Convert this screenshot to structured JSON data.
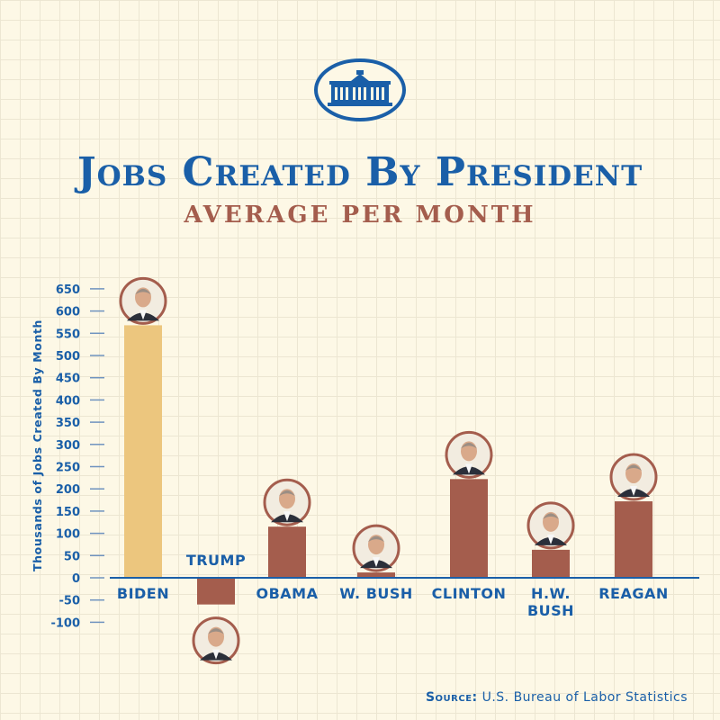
{
  "header": {
    "title": "Jobs Created By President",
    "subtitle": "AVERAGE PER MONTH",
    "logo_icon": "white-house-icon"
  },
  "source": {
    "label": "Source:",
    "text": "U.S. Bureau of Labor Statistics"
  },
  "colors": {
    "accent": "#1a5fa8",
    "bar": "#a45d4d",
    "highlight_bar": "#ecc67e",
    "background": "#fdf8e6"
  },
  "chart_data": {
    "type": "bar",
    "title": "Jobs Created By President",
    "subtitle": "AVERAGE PER MONTH",
    "ylabel": "Thousands of Jobs Created By Month",
    "xlabel": "",
    "ylim": [
      -100,
      650
    ],
    "yticks": [
      650,
      600,
      550,
      500,
      450,
      400,
      350,
      300,
      250,
      200,
      150,
      100,
      50,
      0,
      -50,
      -100
    ],
    "categories": [
      "BIDEN",
      "TRUMP",
      "OBAMA",
      "W. BUSH",
      "CLINTON",
      "H.W. BUSH",
      "REAGAN"
    ],
    "category_lines": [
      [
        "BIDEN"
      ],
      [
        "TRUMP"
      ],
      [
        "OBAMA"
      ],
      [
        "W. BUSH"
      ],
      [
        "CLINTON"
      ],
      [
        "H.W.",
        "BUSH"
      ],
      [
        "REAGAN"
      ]
    ],
    "values": [
      568,
      -60,
      115,
      12,
      222,
      63,
      172
    ],
    "highlight_index": 0,
    "portrait_icons": [
      "biden-portrait-icon",
      "trump-portrait-icon",
      "obama-portrait-icon",
      "w-bush-portrait-icon",
      "clinton-portrait-icon",
      "hw-bush-portrait-icon",
      "reagan-portrait-icon"
    ],
    "grid": true
  }
}
